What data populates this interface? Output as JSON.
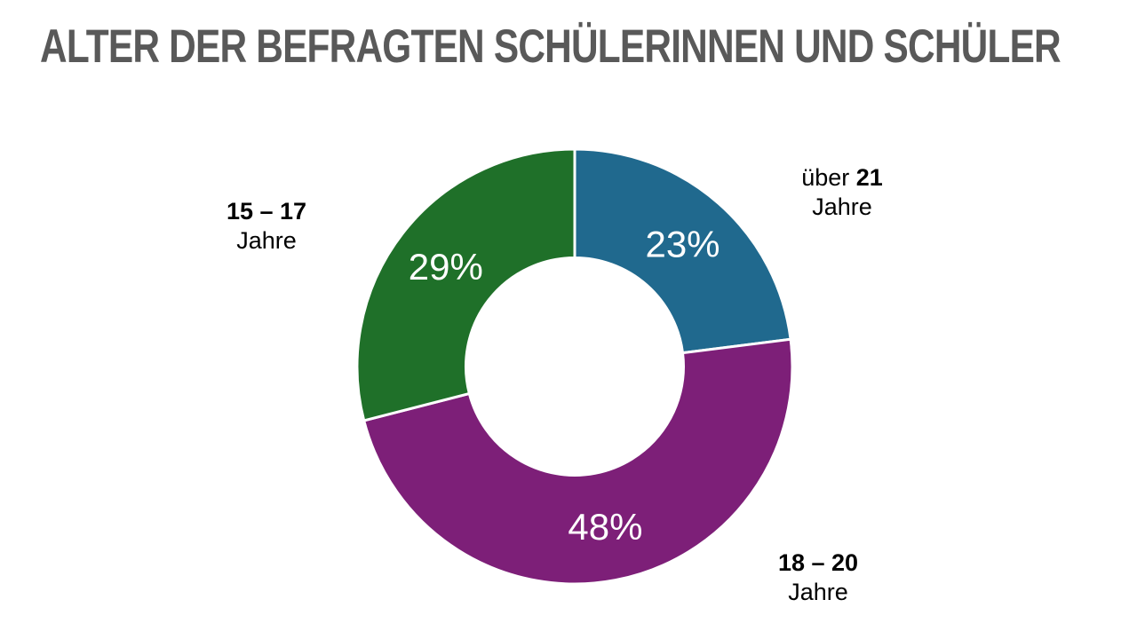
{
  "slide": {
    "title": "ALTER DER BEFRAGTEN SCHÜLERINNEN UND SCHÜLER",
    "title_color": "#595959",
    "background_color": "#FFFFFF"
  },
  "chart_data": {
    "type": "pie",
    "variant": "donut",
    "title": "ALTER DER BEFRAGTEN SCHÜLERINNEN UND SCHÜLER",
    "start_angle_deg": 0,
    "direction": "clockwise",
    "donut_hole_ratio": 0.5,
    "separator_color": "#FFFFFF",
    "value_label_color": "#FFFFFF",
    "legend_position": "outside-callouts",
    "grid": false,
    "segments": [
      {
        "label": "über 21 Jahre",
        "value": 23,
        "value_label": "23%",
        "color": "#20698E"
      },
      {
        "label": "18 – 20 Jahre",
        "value": 48,
        "value_label": "48%",
        "color": "#7D1F78"
      },
      {
        "label": "15 – 17 Jahre",
        "value": 29,
        "value_label": "29%",
        "color": "#1F7029"
      }
    ]
  },
  "callouts": [
    {
      "line1_regular": "über ",
      "line1_bold": "21",
      "line2": "Jahre"
    },
    {
      "line1_regular": "",
      "line1_bold": "18 – 20",
      "line2": "Jahre"
    },
    {
      "line1_regular": "",
      "line1_bold": "15 – 17",
      "line2": "Jahre"
    }
  ]
}
